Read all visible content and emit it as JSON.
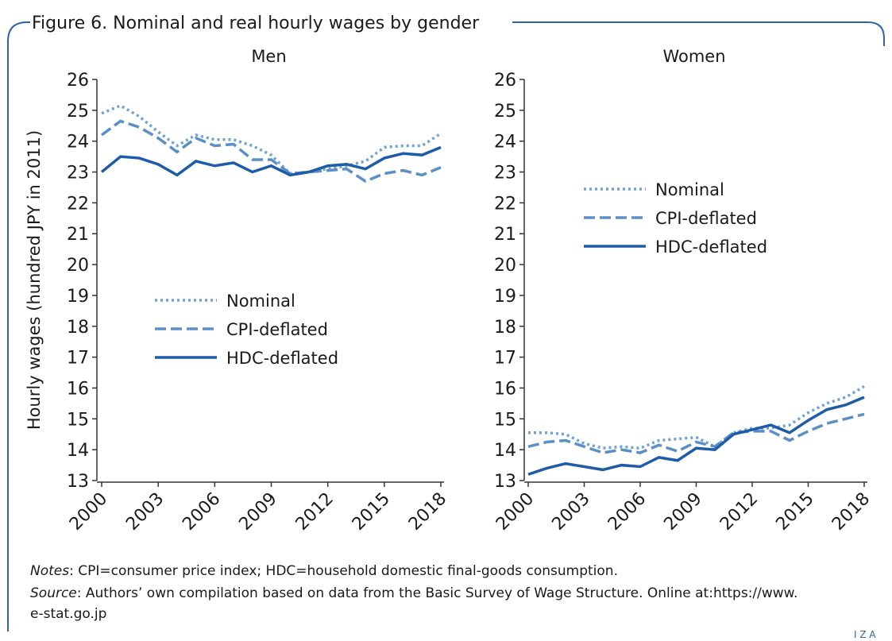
{
  "title": "Figure 6. Nominal and real hourly wages by gender",
  "notes": {
    "label": "Notes",
    "text": ": CPI=consumer price index; HDC=household domestic final-goods consumption."
  },
  "source": {
    "label": "Source",
    "text": ": Authors’ own compilation based on data from the Basic Survey of Wage Structure. Online at:https://www.",
    "text2": "e-stat.go.jp"
  },
  "logo": "I Z A",
  "chart_data": [
    {
      "type": "line",
      "title": "Men",
      "y_label": "Hourly wages (hundred JPY in 2011)",
      "x": [
        2000,
        2001,
        2002,
        2003,
        2004,
        2005,
        2006,
        2007,
        2008,
        2009,
        2010,
        2011,
        2012,
        2013,
        2014,
        2015,
        2016,
        2017,
        2018
      ],
      "xlim": [
        2000,
        2018
      ],
      "xticks": [
        2000,
        2003,
        2006,
        2009,
        2012,
        2015,
        2018
      ],
      "ylim": [
        13,
        26
      ],
      "yticks": [
        13,
        14,
        15,
        16,
        17,
        18,
        19,
        20,
        21,
        22,
        23,
        24,
        25,
        26
      ],
      "legend": "center-left",
      "series": [
        {
          "name": "Nominal",
          "color": "#6fa3d6",
          "dash": "dotted",
          "values": [
            24.9,
            25.15,
            24.8,
            24.3,
            23.85,
            24.2,
            24.05,
            24.05,
            23.85,
            23.55,
            22.95,
            23.0,
            23.1,
            23.2,
            23.35,
            23.8,
            23.85,
            23.85,
            24.25
          ]
        },
        {
          "name": "CPI-deflated",
          "color": "#5b8fc7",
          "dash": "dashed",
          "values": [
            24.2,
            24.65,
            24.45,
            24.1,
            23.65,
            24.1,
            23.85,
            23.9,
            23.4,
            23.4,
            22.95,
            23.0,
            23.05,
            23.1,
            22.7,
            22.95,
            23.05,
            22.9,
            23.15
          ]
        },
        {
          "name": "HDC-deflated",
          "color": "#1f5ca8",
          "dash": "solid",
          "values": [
            23.0,
            23.5,
            23.45,
            23.25,
            22.9,
            23.35,
            23.2,
            23.3,
            23.0,
            23.2,
            22.9,
            23.0,
            23.2,
            23.25,
            23.1,
            23.45,
            23.6,
            23.55,
            23.8
          ]
        }
      ]
    },
    {
      "type": "line",
      "title": "Women",
      "x": [
        2000,
        2001,
        2002,
        2003,
        2004,
        2005,
        2006,
        2007,
        2008,
        2009,
        2010,
        2011,
        2012,
        2013,
        2014,
        2015,
        2016,
        2017,
        2018
      ],
      "xlim": [
        2000,
        2018
      ],
      "xticks": [
        2000,
        2003,
        2006,
        2009,
        2012,
        2015,
        2018
      ],
      "ylim": [
        13,
        26
      ],
      "yticks": [
        13,
        14,
        15,
        16,
        17,
        18,
        19,
        20,
        21,
        22,
        23,
        24,
        25,
        26
      ],
      "legend": "upper-center",
      "series": [
        {
          "name": "Nominal",
          "color": "#6fa3d6",
          "dash": "dotted",
          "values": [
            14.55,
            14.55,
            14.5,
            14.2,
            14.05,
            14.1,
            14.05,
            14.3,
            14.35,
            14.4,
            14.1,
            14.55,
            14.7,
            14.7,
            14.8,
            15.2,
            15.5,
            15.7,
            16.05
          ]
        },
        {
          "name": "CPI-deflated",
          "color": "#5b8fc7",
          "dash": "dashed",
          "values": [
            14.1,
            14.25,
            14.3,
            14.1,
            13.9,
            14.0,
            13.9,
            14.15,
            13.95,
            14.25,
            14.1,
            14.55,
            14.6,
            14.6,
            14.3,
            14.6,
            14.85,
            15.0,
            15.15
          ]
        },
        {
          "name": "HDC-deflated",
          "color": "#1f5ca8",
          "dash": "solid",
          "values": [
            13.2,
            13.4,
            13.55,
            13.45,
            13.35,
            13.5,
            13.45,
            13.75,
            13.65,
            14.05,
            14.0,
            14.5,
            14.65,
            14.8,
            14.55,
            14.95,
            15.3,
            15.45,
            15.7
          ]
        }
      ]
    }
  ]
}
